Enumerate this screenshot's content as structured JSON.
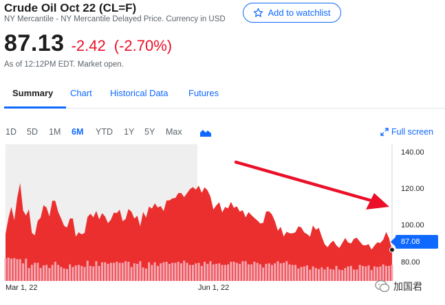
{
  "header": {
    "title": "Crude Oil Oct 22 (CL=F)",
    "subtitle": "NY Mercantile - NY Mercantile Delayed Price. Currency in USD",
    "watchlist_label": "Add to watchlist"
  },
  "quote": {
    "price": "87.13",
    "change": "-2.42",
    "change_percent": "(-2.70%)",
    "as_of": "As of 12:12PM EDT. Market open."
  },
  "tabs": [
    {
      "label": "Summary",
      "active": true
    },
    {
      "label": "Chart"
    },
    {
      "label": "Historical Data"
    },
    {
      "label": "Futures"
    }
  ],
  "ranges": [
    {
      "label": "1D"
    },
    {
      "label": "5D"
    },
    {
      "label": "1M"
    },
    {
      "label": "6M",
      "active": true
    },
    {
      "label": "YTD"
    },
    {
      "label": "1Y"
    },
    {
      "label": "5Y"
    },
    {
      "label": "Max"
    }
  ],
  "chart_type_icon": "mountain-chart-icon",
  "fullscreen_label": "Full screen",
  "watermark": "加国君",
  "colors": {
    "accent": "#0f69ff",
    "negative": "#eb0f29",
    "area_fill": "#eb2f2f",
    "volume_bar": "#f4a8b3",
    "highlight_band": "#efefef",
    "arrow": "#eb0f29"
  },
  "chart_data": {
    "type": "area",
    "ylim": [
      70,
      145
    ],
    "y_ticks": [
      "140.00",
      "120.00",
      "100.00",
      "80.00"
    ],
    "y_tick_values": [
      140,
      120,
      100,
      80
    ],
    "x_tick_labels": [
      "Mar 1, 22",
      "Jun 1, 22"
    ],
    "current_price_label": "87.08",
    "current_price": 87.08,
    "prices": [
      95.7,
      104.4,
      110.6,
      103.4,
      115.7,
      123.7,
      108.7,
      105.9,
      109.3,
      96.4,
      95.0,
      103.0,
      104.7,
      111.6,
      110.3,
      105.4,
      114.1,
      113.9,
      107.9,
      104.3,
      100.3,
      99.3,
      104.3,
      104.3,
      94.3,
      96.7,
      95.6,
      96.3,
      105.1,
      106.9,
      104.9,
      108.4,
      103.8,
      107.2,
      105.4,
      101.7,
      103.7,
      107.5,
      107.2,
      109.1,
      102.8,
      103.9,
      109.5,
      108.0,
      104.2,
      105.8,
      99.9,
      107.9,
      104.7,
      110.8,
      109.7,
      112.6,
      110.3,
      111.1,
      108.3,
      114.2,
      114.2,
      115.3,
      115.5,
      118.2,
      118.3,
      116.0,
      118.2,
      120.4,
      121.5,
      120.1,
      122.3,
      118.4,
      121.4,
      119.7,
      116.2,
      109.2,
      111.5,
      113.2,
      107.6,
      110.6,
      109.8,
      113.4,
      110.1,
      111.0,
      108.0,
      108.8,
      104.9,
      107.8,
      106.1,
      104.6,
      103.2,
      101.5,
      101.9,
      108.1,
      108.2,
      106.5,
      102.8,
      97.6,
      99.7,
      94.4,
      97.0,
      96.2,
      96.1,
      96.7,
      99.9,
      99.4,
      96.6,
      95.7,
      94.3,
      100.5,
      98.1,
      99.1,
      94.3,
      90.1,
      88.5,
      90.8,
      92.1,
      89.5,
      88.1,
      90.8,
      93.6,
      91.1,
      90.6,
      93.2,
      93.7,
      91.6,
      89.7,
      89.5,
      90.2,
      87.2,
      89.4,
      91.2,
      90.8,
      92.7,
      96.9,
      93.4,
      87.1
    ],
    "volume": [
      44,
      45,
      43,
      44,
      42,
      42,
      34,
      43,
      25,
      31,
      35,
      35,
      25,
      30,
      31,
      25,
      31,
      37,
      31,
      27,
      24,
      23,
      32,
      27,
      30,
      31,
      29,
      27,
      39,
      29,
      28,
      38,
      29,
      36,
      36,
      33,
      35,
      35,
      37,
      35,
      35,
      38,
      37,
      27,
      34,
      33,
      38,
      26,
      24,
      36,
      31,
      36,
      29,
      34,
      36,
      37,
      33,
      35,
      35,
      37,
      34,
      39,
      35,
      31,
      31,
      34,
      35,
      29,
      37,
      33,
      38,
      32,
      33,
      34,
      31,
      31,
      32,
      37,
      37,
      35,
      33,
      38,
      38,
      32,
      32,
      37,
      35,
      32,
      26,
      33,
      34,
      31,
      34,
      38,
      34,
      35,
      38,
      32,
      31,
      31,
      24,
      27,
      28,
      30,
      22,
      28,
      25,
      23,
      26,
      22,
      27,
      23,
      22,
      29,
      22,
      21,
      25,
      28,
      29,
      22,
      22,
      31,
      29,
      28,
      30,
      21,
      28,
      27,
      28,
      32,
      29,
      29,
      31
    ]
  }
}
